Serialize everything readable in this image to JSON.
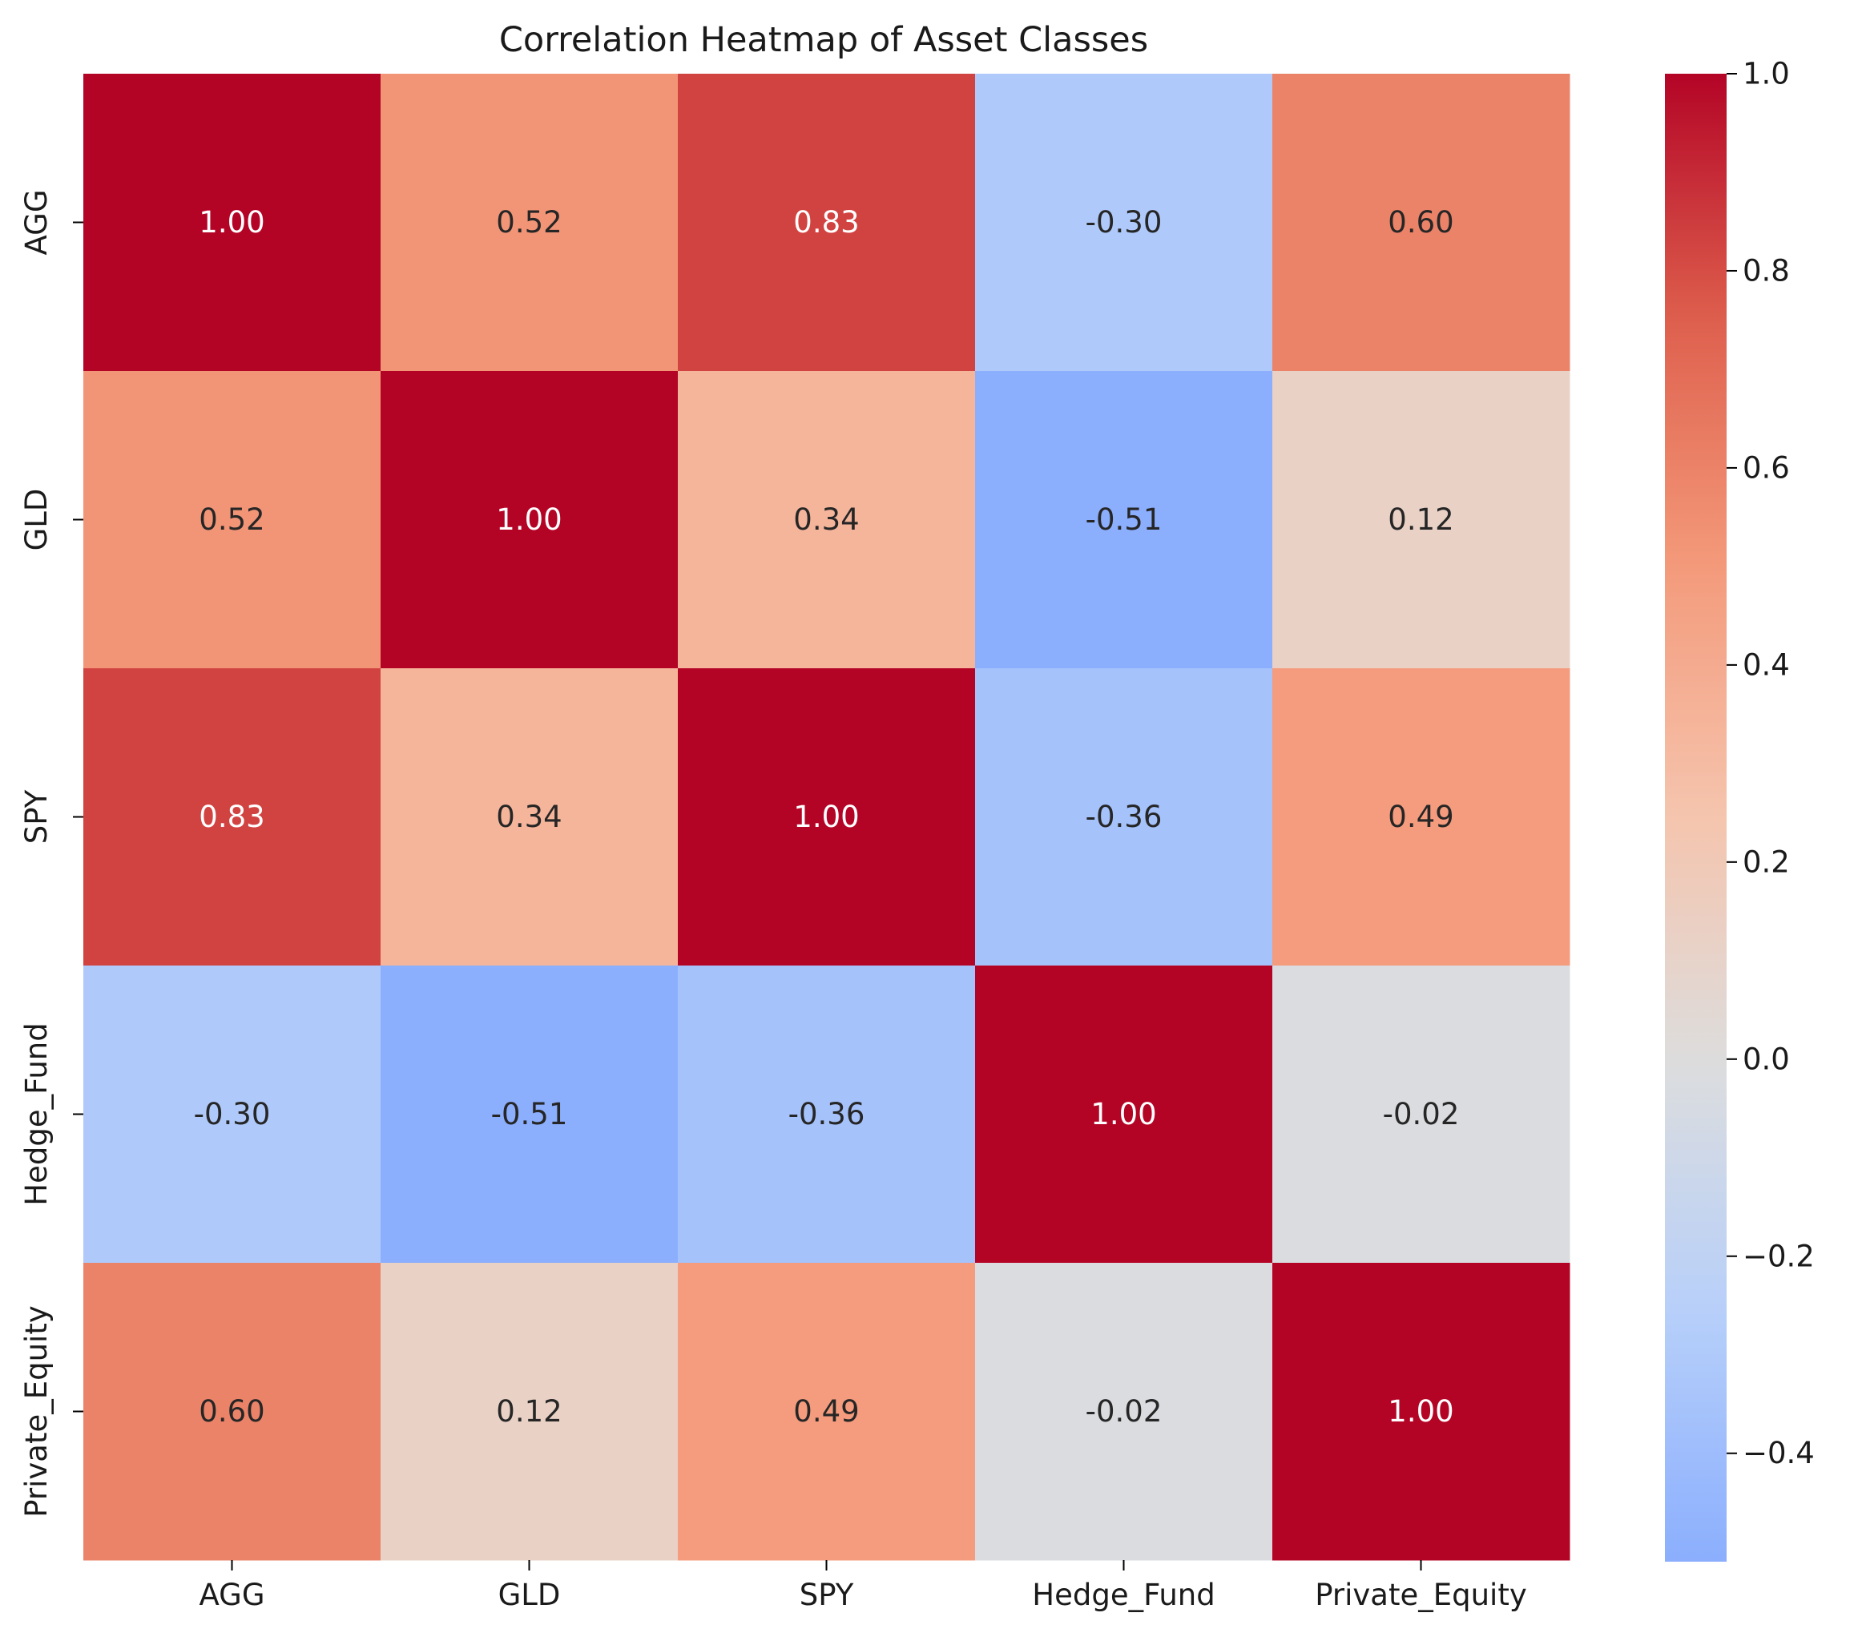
{
  "chart_data": {
    "type": "heatmap",
    "title": "Correlation Heatmap of Asset Classes",
    "xlabel": "",
    "ylabel": "",
    "x_categories": [
      "AGG",
      "GLD",
      "SPY",
      "Hedge_Fund",
      "Private_Equity"
    ],
    "y_categories": [
      "AGG",
      "GLD",
      "SPY",
      "Hedge_Fund",
      "Private_Equity"
    ],
    "values": [
      [
        1.0,
        0.52,
        0.83,
        -0.3,
        0.6
      ],
      [
        0.52,
        1.0,
        0.34,
        -0.51,
        0.12
      ],
      [
        0.83,
        0.34,
        1.0,
        -0.36,
        0.49
      ],
      [
        -0.3,
        -0.51,
        -0.36,
        1.0,
        -0.02
      ],
      [
        0.6,
        0.12,
        0.49,
        -0.02,
        1.0
      ]
    ],
    "annotation_format": "0.00",
    "colormap": "coolwarm",
    "vmin": -0.51,
    "vmax": 1.0,
    "colorbar": {
      "ticks": [
        1.0,
        0.8,
        0.6,
        0.4,
        0.2,
        0.0,
        -0.2,
        -0.4
      ],
      "tick_labels": [
        "1.0",
        "0.8",
        "0.6",
        "0.4",
        "0.2",
        "0.0",
        "−0.2",
        "−0.4"
      ],
      "placement": "right"
    },
    "grid": false,
    "legend": "none"
  }
}
